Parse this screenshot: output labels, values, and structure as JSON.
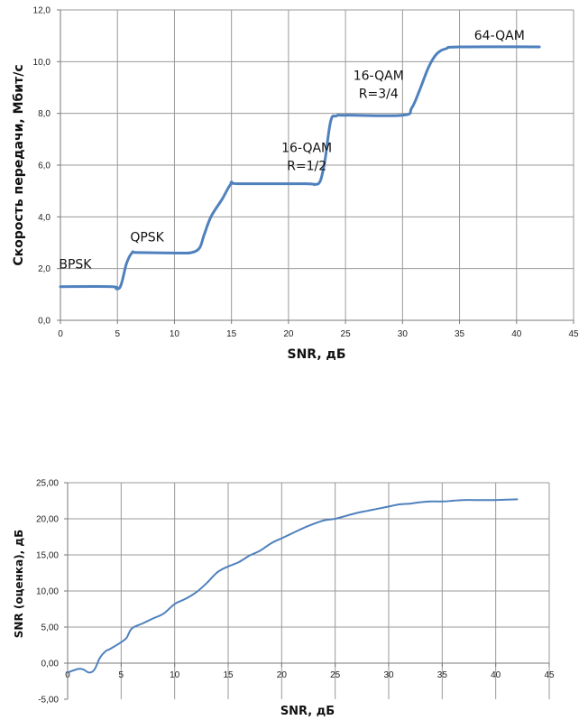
{
  "chart_data": [
    {
      "type": "line",
      "title": "",
      "xlabel": "SNR, дБ",
      "ylabel": "Скорость передачи, Мбит/с",
      "xlim": [
        0,
        45
      ],
      "ylim": [
        0,
        12
      ],
      "x_ticks": [
        "0",
        "5",
        "10",
        "15",
        "20",
        "25",
        "30",
        "35",
        "40",
        "45"
      ],
      "y_ticks": [
        "0,0",
        "2,0",
        "4,0",
        "6,0",
        "8,0",
        "10,0",
        "12,0"
      ],
      "grid": true,
      "legend": "none",
      "line_color": "#4f81bd",
      "series": [
        {
          "x": [
            0,
            4.5,
            4.9,
            5.3,
            5.8,
            6.3,
            6.8,
            10.5,
            11.5,
            12.2,
            12.6,
            13.2,
            14.2,
            15.0,
            15.6,
            21.5,
            22.3,
            22.8,
            23.2,
            23.7,
            24.2,
            25,
            30.0,
            30.8,
            31.5,
            32.3,
            33.0,
            33.8,
            35.0,
            42
          ],
          "y": [
            1.3,
            1.3,
            1.22,
            1.35,
            2.2,
            2.62,
            2.62,
            2.6,
            2.62,
            2.8,
            3.3,
            4.0,
            4.7,
            5.3,
            5.28,
            5.28,
            5.25,
            5.4,
            6.2,
            7.7,
            7.9,
            7.93,
            7.93,
            8.2,
            8.9,
            9.8,
            10.3,
            10.5,
            10.57,
            10.57
          ]
        }
      ],
      "annotations": [
        {
          "text": "BPSK",
          "x": 1.3,
          "y": 2.0
        },
        {
          "text": "QPSK",
          "x": 7.6,
          "y": 3.05
        },
        {
          "text": "16-QAM",
          "x": 21.6,
          "y": 6.5
        },
        {
          "text": "R=1/2",
          "x": 21.6,
          "y": 5.8
        },
        {
          "text": "16-QAM",
          "x": 27.9,
          "y": 9.3
        },
        {
          "text": "R=3/4",
          "x": 27.9,
          "y": 8.6
        },
        {
          "text": "64-QAM",
          "x": 38.5,
          "y": 10.85
        }
      ]
    },
    {
      "type": "line",
      "title": "",
      "xlabel": "SNR, дБ",
      "ylabel": "SNR (оценка), дБ",
      "xlim": [
        0,
        45
      ],
      "ylim": [
        -5,
        25
      ],
      "x_ticks": [
        "0",
        "5",
        "10",
        "15",
        "20",
        "25",
        "30",
        "35",
        "40",
        "45"
      ],
      "y_ticks": [
        "-5,00",
        "0,00",
        "5,00",
        "10,00",
        "15,00",
        "20,00",
        "25,00"
      ],
      "grid": true,
      "legend": "none",
      "line_color": "#4f81bd",
      "series": [
        {
          "x": [
            0,
            1,
            1.5,
            2,
            2.5,
            3,
            3.5,
            4,
            5,
            5.5,
            6,
            7,
            8,
            9,
            10,
            11,
            12,
            13,
            14,
            15,
            16,
            17,
            18,
            19,
            20,
            21,
            22,
            23,
            24,
            25,
            26,
            27,
            28,
            29,
            30,
            31,
            32,
            33,
            34,
            35,
            36,
            37,
            38,
            39,
            40,
            41,
            42
          ],
          "y": [
            -1.3,
            -0.8,
            -0.9,
            -1.3,
            -0.9,
            0.7,
            1.6,
            2.0,
            2.9,
            3.5,
            4.8,
            5.5,
            6.2,
            6.9,
            8.2,
            8.9,
            9.8,
            11.1,
            12.6,
            13.4,
            14.0,
            14.9,
            15.6,
            16.6,
            17.3,
            18.0,
            18.7,
            19.3,
            19.8,
            20.0,
            20.4,
            20.8,
            21.1,
            21.4,
            21.7,
            22.0,
            22.1,
            22.3,
            22.4,
            22.4,
            22.5,
            22.6,
            22.6,
            22.6,
            22.6,
            22.65,
            22.7
          ]
        }
      ]
    }
  ]
}
